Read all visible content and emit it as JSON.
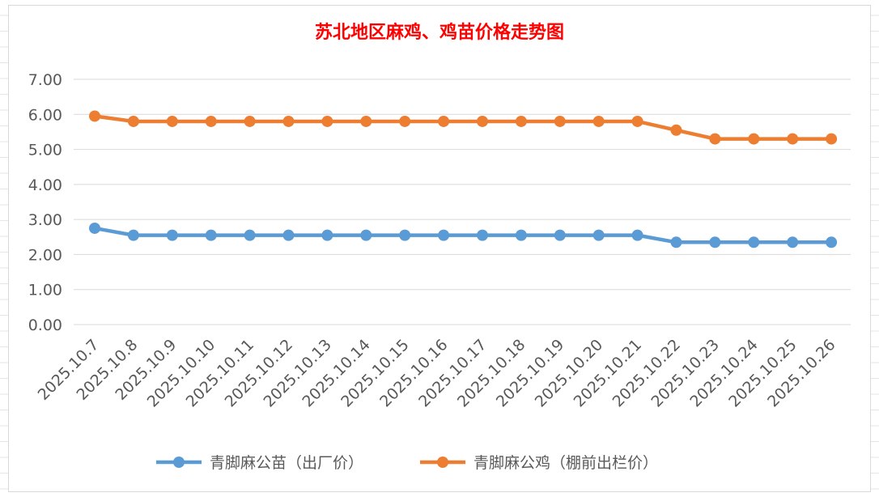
{
  "chart_data": {
    "type": "line",
    "title": "苏北地区麻鸡、鸡苗价格走势图",
    "xlabel": "",
    "ylabel": "",
    "categories": [
      "2025.10.7",
      "2025.10.8",
      "2025.10.9",
      "2025.10.10",
      "2025.10.11",
      "2025.10.12",
      "2025.10.13",
      "2025.10.14",
      "2025.10.15",
      "2025.10.16",
      "2025.10.17",
      "2025.10.18",
      "2025.10.19",
      "2025.10.20",
      "2025.10.21",
      "2025.10.22",
      "2025.10.23",
      "2025.10.24",
      "2025.10.25",
      "2025.10.26"
    ],
    "ylim": [
      0,
      7
    ],
    "yticks": [
      "0.00",
      "1.00",
      "2.00",
      "3.00",
      "4.00",
      "5.00",
      "6.00",
      "7.00"
    ],
    "grid": true,
    "legend_position": "bottom",
    "series": [
      {
        "name": "青脚麻公苗（出厂价）",
        "color": "#5b9bd5",
        "values": [
          2.75,
          2.55,
          2.55,
          2.55,
          2.55,
          2.55,
          2.55,
          2.55,
          2.55,
          2.55,
          2.55,
          2.55,
          2.55,
          2.55,
          2.55,
          2.35,
          2.35,
          2.35,
          2.35,
          2.35
        ]
      },
      {
        "name": "青脚麻公鸡（棚前出栏价）",
        "color": "#ed7d31",
        "values": [
          5.95,
          5.8,
          5.8,
          5.8,
          5.8,
          5.8,
          5.8,
          5.8,
          5.8,
          5.8,
          5.8,
          5.8,
          5.8,
          5.8,
          5.8,
          5.55,
          5.3,
          5.3,
          5.3,
          5.3
        ]
      }
    ]
  }
}
